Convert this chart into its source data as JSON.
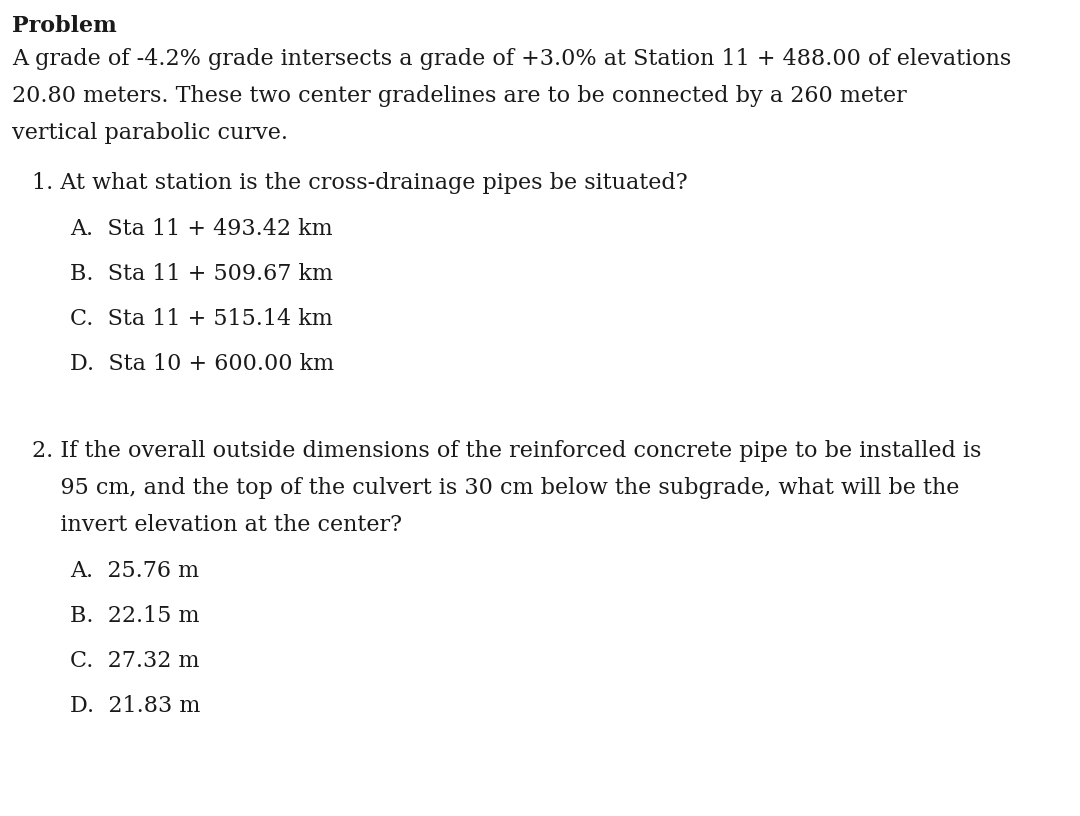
{
  "background_color": "#ffffff",
  "figsize": [
    10.8,
    8.16
  ],
  "dpi": 100,
  "title": "Problem",
  "paragraph_lines": [
    "A grade of -4.2% grade intersects a grade of +3.0% at Station 11 + 488.00 of elevations",
    "20.80 meters. These two center gradelines are to be connected by a 260 meter",
    "vertical parabolic curve."
  ],
  "q1_text": "1. At what station is the cross-drainage pipes be situated?",
  "q1_options": [
    "A.  Sta 11 + 493.42 km",
    "B.  Sta 11 + 509.67 km",
    "C.  Sta 11 + 515.14 km",
    "D.  Sta 10 + 600.00 km"
  ],
  "q2_lines": [
    "2. If the overall outside dimensions of the reinforced concrete pipe to be installed is",
    "    95 cm, and the top of the culvert is 30 cm below the subgrade, what will be the",
    "    invert elevation at the center?"
  ],
  "q2_options": [
    "A.  25.76 m",
    "B.  22.15 m",
    "C.  27.32 m",
    "D.  21.83 m"
  ],
  "font_family": "DejaVu Serif",
  "body_fontsize": 16,
  "text_color": "#1a1a1a"
}
